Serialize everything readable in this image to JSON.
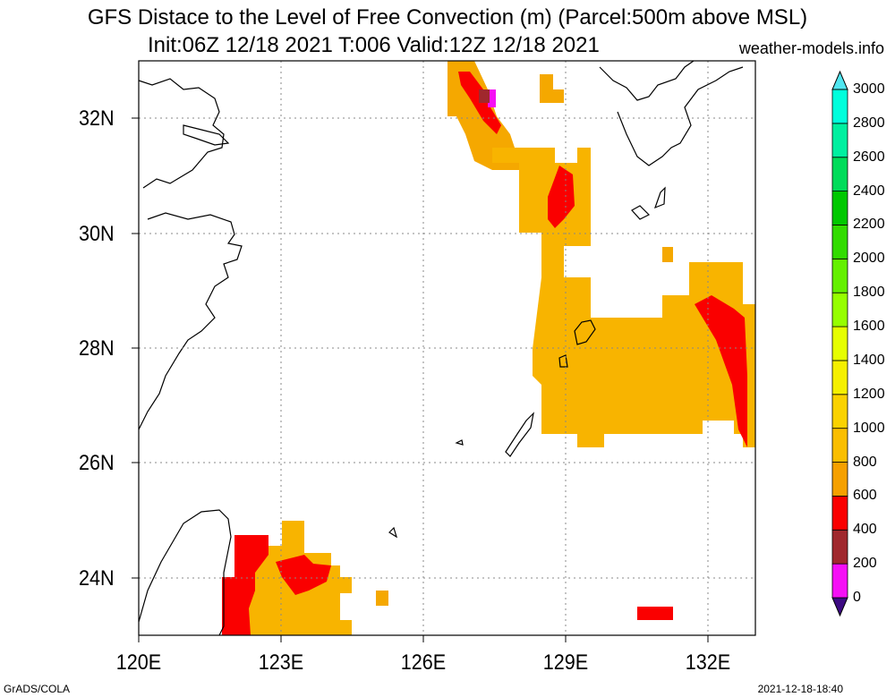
{
  "title": {
    "line1": "GFS Distace to the Level of Free Convection (m) (Parcel:500m above MSL)",
    "line2": "Init:06Z 12/18 2021 T:006 Valid:12Z 12/18 2021",
    "site": "weather-models.info"
  },
  "map": {
    "lat_range": [
      23,
      33
    ],
    "lon_range": [
      120,
      133
    ],
    "lat_labels": [
      {
        "label": "32N",
        "lat": 32
      },
      {
        "label": "30N",
        "lat": 30
      },
      {
        "label": "28N",
        "lat": 28
      },
      {
        "label": "26N",
        "lat": 26
      },
      {
        "label": "24N",
        "lat": 24
      }
    ],
    "lon_labels": [
      {
        "label": "120E",
        "lon": 120
      },
      {
        "label": "123E",
        "lon": 123
      },
      {
        "label": "126E",
        "lon": 126
      },
      {
        "label": "129E",
        "lon": 129
      },
      {
        "label": "132E",
        "lon": 132
      }
    ],
    "grid": true
  },
  "colorbar": {
    "levels": [
      "0",
      "200",
      "400",
      "600",
      "800",
      "1000",
      "1200",
      "1400",
      "1600",
      "1800",
      "2000",
      "2200",
      "2400",
      "2600",
      "2800",
      "3000"
    ],
    "colors": [
      "#3c0a82",
      "#f50ff5",
      "#a0282d",
      "#fa0000",
      "#f5a000",
      "#fabe00",
      "#fad200",
      "#f5f000",
      "#e6ff00",
      "#96ff00",
      "#64f000",
      "#32dc00",
      "#00c800",
      "#00dc5a",
      "#00f0a0",
      "#00ffdc",
      "#50e6f0"
    ]
  },
  "footer": {
    "left": "GrADS/COLA",
    "right": "2021-12-18-18:40"
  }
}
